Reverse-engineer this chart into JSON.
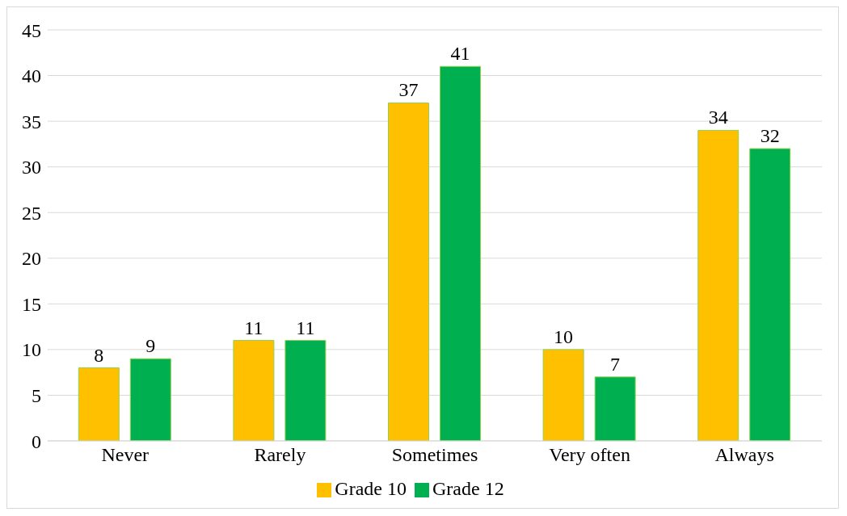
{
  "chart_data": {
    "type": "bar",
    "categories": [
      "Never",
      "Rarely",
      "Sometimes",
      "Very often",
      "Always"
    ],
    "series": [
      {
        "name": "Grade 10",
        "color": "#ffc000",
        "values": [
          8,
          11,
          37,
          10,
          34
        ]
      },
      {
        "name": "Grade 12",
        "color": "#00b050",
        "values": [
          9,
          11,
          41,
          7,
          32
        ]
      }
    ],
    "ylim": [
      0,
      45
    ],
    "yticks": [
      0,
      5,
      10,
      15,
      20,
      25,
      30,
      35,
      40,
      45
    ],
    "grid": "y",
    "legend": "bottom",
    "data_labels": true
  }
}
